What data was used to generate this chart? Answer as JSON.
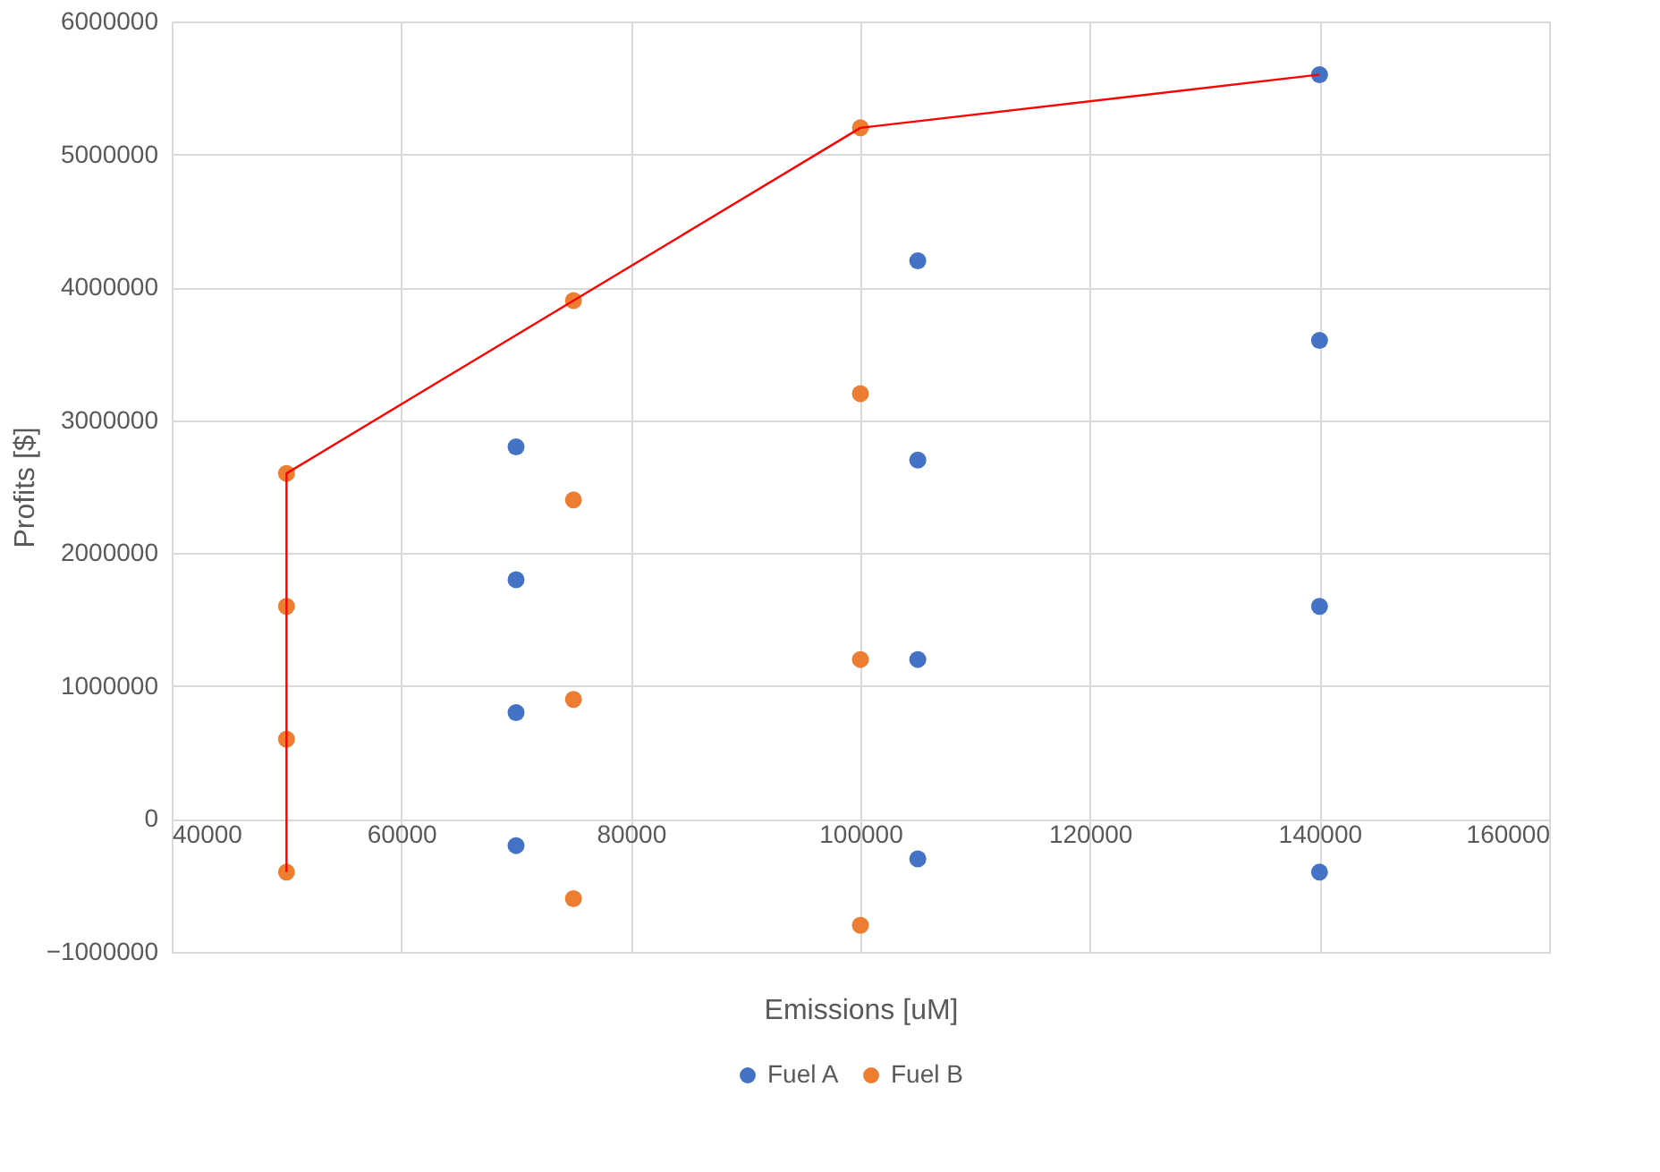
{
  "chart_data": {
    "type": "scatter",
    "xlabel": "Emissions [uM]",
    "ylabel": "Profits [$]",
    "xlim": [
      40000,
      160000
    ],
    "xticks": [
      40000,
      60000,
      80000,
      100000,
      120000,
      140000,
      160000
    ],
    "ylim": [
      -1000000,
      6000000
    ],
    "yticks": [
      -1000000,
      0,
      1000000,
      2000000,
      3000000,
      4000000,
      5000000,
      6000000
    ],
    "grid": true,
    "legend": "bottom",
    "marker": "circle",
    "series": [
      {
        "name": "Fuel A",
        "color": "#4472c4",
        "x": [
          70000,
          70000,
          70000,
          70000,
          105000,
          105000,
          105000,
          105000,
          140000,
          140000,
          140000,
          140000
        ],
        "values": [
          2800000,
          1800000,
          800000,
          -200000,
          4200000,
          2700000,
          1200000,
          -300000,
          5600000,
          3600000,
          1600000,
          -400000
        ]
      },
      {
        "name": "Fuel B",
        "color": "#ed7d31",
        "x": [
          50000,
          50000,
          50000,
          50000,
          75000,
          75000,
          75000,
          75000,
          100000,
          100000,
          100000,
          100000
        ],
        "values": [
          2600000,
          1600000,
          600000,
          -400000,
          3900000,
          2400000,
          900000,
          -600000,
          5200000,
          3200000,
          1200000,
          -800000
        ]
      },
      {
        "type": "line",
        "color": "#ff0000",
        "line_style": "solid",
        "marker": "none",
        "x": [
          50000,
          50000,
          75000,
          100000,
          140000
        ],
        "values": [
          -400000,
          2600000,
          3900000,
          5200000,
          5600000
        ]
      }
    ]
  }
}
